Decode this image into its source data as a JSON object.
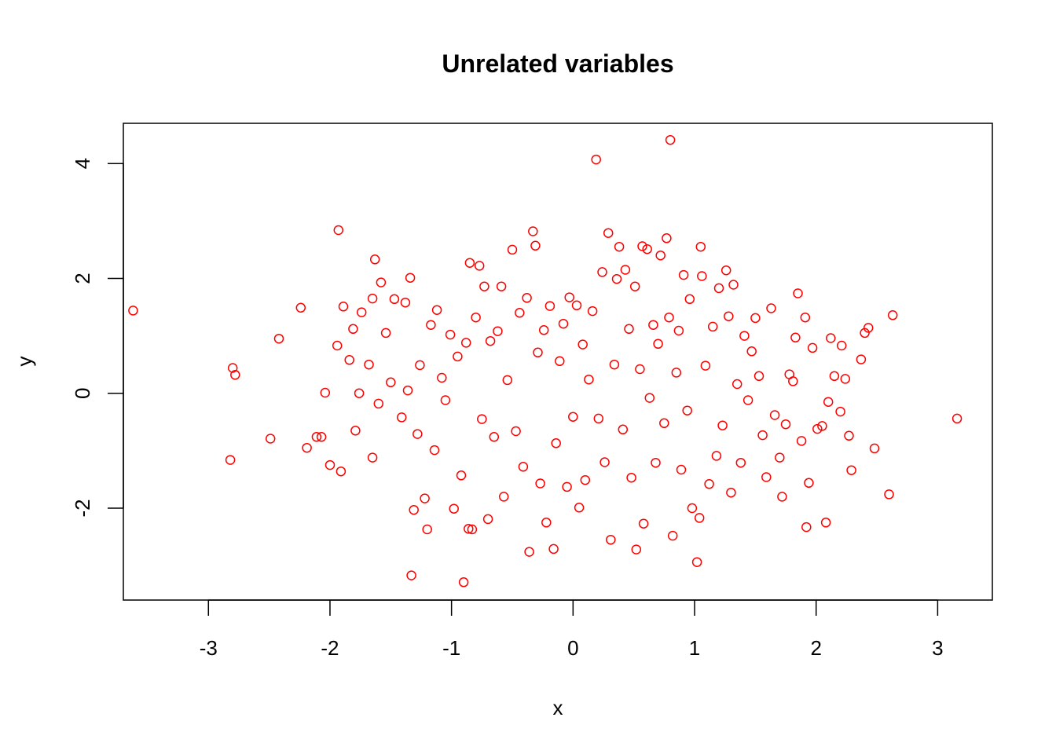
{
  "chart_data": {
    "type": "scatter",
    "title": "Unrelated variables",
    "xlabel": "x",
    "ylabel": "y",
    "xlim": [
      -3.7,
      3.45
    ],
    "ylim": [
      -3.6,
      4.7
    ],
    "xticks": [
      -3,
      -2,
      -1,
      0,
      1,
      2,
      3
    ],
    "yticks": [
      -2,
      0,
      2,
      4
    ],
    "grid": false,
    "legend": "none",
    "marker": "open-circle",
    "color": "#ff0000",
    "n_points_approx": 1000,
    "points": [
      [
        -3.62,
        1.44
      ],
      [
        -2.8,
        0.44
      ],
      [
        -2.78,
        0.32
      ],
      [
        -2.82,
        -1.16
      ],
      [
        -2.49,
        -0.79
      ],
      [
        -2.42,
        0.95
      ],
      [
        -2.24,
        1.49
      ],
      [
        -2.19,
        -0.95
      ],
      [
        -2.11,
        -0.76
      ],
      [
        -2.07,
        -0.76
      ],
      [
        -2.04,
        0.01
      ],
      [
        -2.0,
        -1.25
      ],
      [
        -1.93,
        2.84
      ],
      [
        -1.94,
        0.83
      ],
      [
        -1.91,
        -1.36
      ],
      [
        -1.89,
        1.51
      ],
      [
        -1.84,
        0.58
      ],
      [
        -1.81,
        1.12
      ],
      [
        -1.79,
        -0.65
      ],
      [
        -1.76,
        0.0
      ],
      [
        -1.74,
        1.41
      ],
      [
        -1.68,
        0.5
      ],
      [
        -1.65,
        1.65
      ],
      [
        -1.65,
        -1.12
      ],
      [
        -1.63,
        2.33
      ],
      [
        -1.6,
        -0.18
      ],
      [
        -1.58,
        1.93
      ],
      [
        -1.54,
        1.05
      ],
      [
        -1.5,
        0.19
      ],
      [
        -1.47,
        1.64
      ],
      [
        -1.41,
        -0.42
      ],
      [
        -1.38,
        1.58
      ],
      [
        -1.36,
        0.05
      ],
      [
        -1.34,
        2.01
      ],
      [
        -1.33,
        -3.17
      ],
      [
        -1.31,
        -2.03
      ],
      [
        -1.28,
        -0.71
      ],
      [
        -1.26,
        0.49
      ],
      [
        -1.22,
        -1.83
      ],
      [
        -1.2,
        -2.37
      ],
      [
        -1.17,
        1.19
      ],
      [
        -1.14,
        -0.99
      ],
      [
        -1.12,
        1.45
      ],
      [
        -1.08,
        0.27
      ],
      [
        -1.05,
        -0.12
      ],
      [
        -1.01,
        1.02
      ],
      [
        -0.98,
        -2.01
      ],
      [
        -0.95,
        0.64
      ],
      [
        -0.92,
        -1.43
      ],
      [
        -0.9,
        -3.29
      ],
      [
        -0.88,
        0.88
      ],
      [
        -0.86,
        -2.36
      ],
      [
        -0.85,
        2.27
      ],
      [
        -0.83,
        -2.37
      ],
      [
        -0.8,
        1.32
      ],
      [
        -0.77,
        2.22
      ],
      [
        -0.75,
        -0.45
      ],
      [
        -0.73,
        1.86
      ],
      [
        -0.7,
        -2.19
      ],
      [
        -0.68,
        0.91
      ],
      [
        -0.65,
        -0.76
      ],
      [
        -0.62,
        1.08
      ],
      [
        -0.59,
        1.86
      ],
      [
        -0.57,
        -1.8
      ],
      [
        -0.54,
        0.23
      ],
      [
        -0.5,
        2.5
      ],
      [
        -0.47,
        -0.66
      ],
      [
        -0.44,
        1.4
      ],
      [
        -0.41,
        -1.28
      ],
      [
        -0.38,
        1.66
      ],
      [
        -0.36,
        -2.76
      ],
      [
        -0.33,
        2.82
      ],
      [
        -0.31,
        2.57
      ],
      [
        -0.29,
        0.71
      ],
      [
        -0.27,
        -1.57
      ],
      [
        -0.24,
        1.1
      ],
      [
        -0.22,
        -2.25
      ],
      [
        -0.19,
        1.52
      ],
      [
        -0.16,
        -2.71
      ],
      [
        -0.14,
        -0.87
      ],
      [
        -0.11,
        0.56
      ],
      [
        -0.08,
        1.21
      ],
      [
        -0.05,
        -1.63
      ],
      [
        -0.03,
        1.67
      ],
      [
        0.0,
        -0.41
      ],
      [
        0.03,
        1.53
      ],
      [
        0.05,
        -1.99
      ],
      [
        0.08,
        0.85
      ],
      [
        0.1,
        -1.51
      ],
      [
        0.13,
        0.24
      ],
      [
        0.16,
        1.43
      ],
      [
        0.19,
        4.07
      ],
      [
        0.21,
        -0.44
      ],
      [
        0.24,
        2.11
      ],
      [
        0.26,
        -1.2
      ],
      [
        0.29,
        2.79
      ],
      [
        0.31,
        -2.55
      ],
      [
        0.34,
        0.5
      ],
      [
        0.36,
        1.99
      ],
      [
        0.38,
        2.55
      ],
      [
        0.41,
        -0.63
      ],
      [
        0.43,
        2.15
      ],
      [
        0.46,
        1.12
      ],
      [
        0.48,
        -1.47
      ],
      [
        0.51,
        1.86
      ],
      [
        0.52,
        -2.72
      ],
      [
        0.55,
        0.42
      ],
      [
        0.57,
        2.56
      ],
      [
        0.58,
        -2.27
      ],
      [
        0.61,
        2.51
      ],
      [
        0.63,
        -0.08
      ],
      [
        0.66,
        1.19
      ],
      [
        0.68,
        -1.21
      ],
      [
        0.7,
        0.86
      ],
      [
        0.72,
        2.4
      ],
      [
        0.75,
        -0.52
      ],
      [
        0.77,
        2.7
      ],
      [
        0.79,
        1.32
      ],
      [
        0.8,
        4.41
      ],
      [
        0.82,
        -2.48
      ],
      [
        0.85,
        0.36
      ],
      [
        0.87,
        1.09
      ],
      [
        0.89,
        -1.33
      ],
      [
        0.91,
        2.06
      ],
      [
        0.94,
        -0.3
      ],
      [
        0.96,
        1.64
      ],
      [
        0.98,
        -2.0
      ],
      [
        1.02,
        -2.94
      ],
      [
        1.04,
        -2.17
      ],
      [
        1.05,
        2.55
      ],
      [
        1.06,
        2.04
      ],
      [
        1.09,
        0.48
      ],
      [
        1.12,
        -1.58
      ],
      [
        1.15,
        1.16
      ],
      [
        1.18,
        -1.09
      ],
      [
        1.2,
        1.83
      ],
      [
        1.23,
        -0.56
      ],
      [
        1.26,
        2.14
      ],
      [
        1.28,
        1.34
      ],
      [
        1.3,
        -1.73
      ],
      [
        1.32,
        1.89
      ],
      [
        1.35,
        0.16
      ],
      [
        1.38,
        -1.21
      ],
      [
        1.41,
        1.0
      ],
      [
        1.44,
        -0.12
      ],
      [
        1.47,
        0.73
      ],
      [
        1.5,
        1.31
      ],
      [
        1.53,
        0.3
      ],
      [
        1.56,
        -0.73
      ],
      [
        1.59,
        -1.46
      ],
      [
        1.63,
        1.48
      ],
      [
        1.66,
        -0.38
      ],
      [
        1.7,
        -1.12
      ],
      [
        1.72,
        -1.8
      ],
      [
        1.75,
        -0.54
      ],
      [
        1.78,
        0.33
      ],
      [
        1.81,
        0.21
      ],
      [
        1.83,
        0.97
      ],
      [
        1.85,
        1.74
      ],
      [
        1.88,
        -0.83
      ],
      [
        1.91,
        1.32
      ],
      [
        1.92,
        -2.33
      ],
      [
        1.94,
        -1.56
      ],
      [
        1.97,
        0.79
      ],
      [
        2.01,
        -0.62
      ],
      [
        2.05,
        -0.57
      ],
      [
        2.08,
        -2.25
      ],
      [
        2.1,
        -0.15
      ],
      [
        2.12,
        0.96
      ],
      [
        2.15,
        0.3
      ],
      [
        2.2,
        -0.32
      ],
      [
        2.21,
        0.83
      ],
      [
        2.24,
        0.25
      ],
      [
        2.27,
        -0.74
      ],
      [
        2.29,
        -1.34
      ],
      [
        2.37,
        0.59
      ],
      [
        2.4,
        1.05
      ],
      [
        2.43,
        1.14
      ],
      [
        2.48,
        -0.96
      ],
      [
        2.6,
        -1.76
      ],
      [
        2.63,
        1.36
      ],
      [
        3.16,
        -0.44
      ]
    ]
  }
}
